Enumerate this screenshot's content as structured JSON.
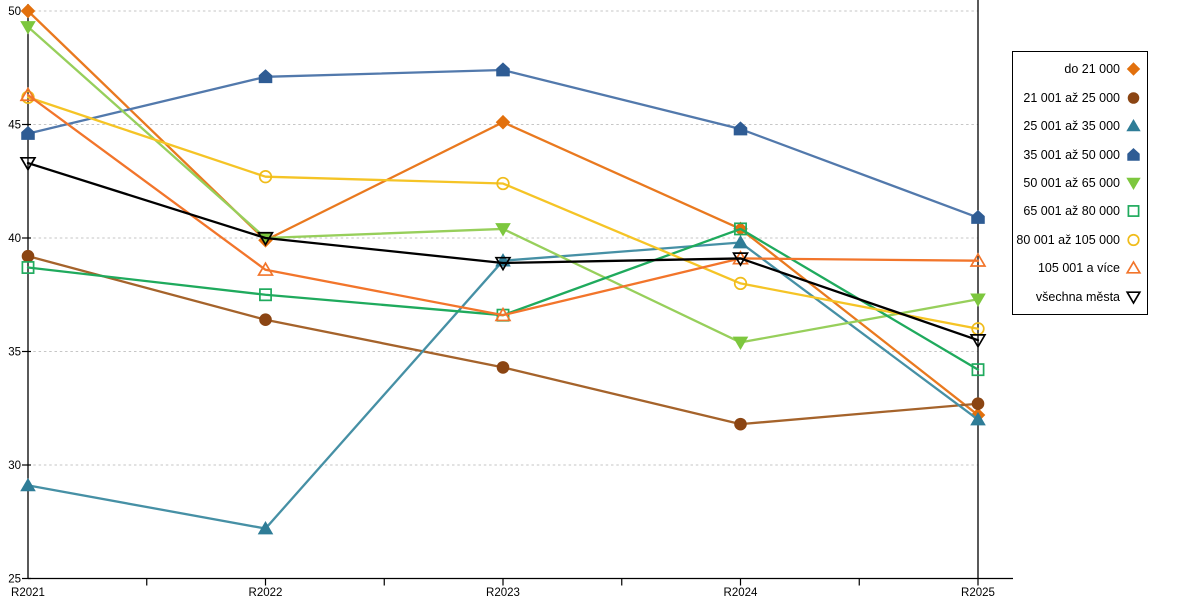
{
  "chart_data": {
    "type": "line",
    "title": "",
    "xlabel": "",
    "ylabel": "",
    "x": [
      "R2021",
      "R2022",
      "R2023",
      "R2024",
      "R2025"
    ],
    "ylim": [
      25,
      50
    ],
    "yticks": [
      25,
      30,
      35,
      40,
      45,
      50
    ],
    "grid": "horizontal-dashed",
    "legend_position": "right",
    "series": [
      {
        "name": "do 21 000",
        "marker": "diamond",
        "fill": "solid",
        "color": "#E9791F",
        "marker_color": "#E2700D",
        "values": [
          50.0,
          39.9,
          45.1,
          40.4,
          32.2
        ]
      },
      {
        "name": "21 001 až 25 000",
        "marker": "circle",
        "fill": "solid",
        "color": "#A5632B",
        "marker_color": "#8B4513",
        "values": [
          39.2,
          36.4,
          34.3,
          31.8,
          32.7
        ]
      },
      {
        "name": "25 001 až 35 000",
        "marker": "triangle-up",
        "fill": "solid",
        "color": "#4690A5",
        "marker_color": "#2F7D97",
        "values": [
          29.1,
          27.2,
          39.0,
          39.8,
          32.0
        ]
      },
      {
        "name": "35 001 až 50 000",
        "marker": "pentagon",
        "fill": "solid",
        "color": "#5279AC",
        "marker_color": "#2F5C94",
        "values": [
          44.6,
          47.1,
          47.4,
          44.8,
          40.9
        ]
      },
      {
        "name": "50 001 až 65 000",
        "marker": "triangle-down",
        "fill": "solid",
        "color": "#97CF5B",
        "marker_color": "#7DC73E",
        "values": [
          49.3,
          40.0,
          40.4,
          35.4,
          37.3
        ]
      },
      {
        "name": "65 001 až 80 000",
        "marker": "square",
        "fill": "open",
        "color": "#1FAA5D",
        "marker_color": "#1FAA5D",
        "values": [
          38.7,
          37.5,
          36.6,
          40.4,
          34.2
        ]
      },
      {
        "name": "80 001 až 105 000",
        "marker": "circle",
        "fill": "open",
        "color": "#F5C426",
        "marker_color": "#F0BC1A",
        "values": [
          46.2,
          42.7,
          42.4,
          38.0,
          36.0
        ]
      },
      {
        "name": "105 001 a více",
        "marker": "triangle-up",
        "fill": "open",
        "color": "#F2752B",
        "marker_color": "#F2752B",
        "values": [
          46.3,
          38.6,
          36.6,
          39.1,
          39.0
        ]
      },
      {
        "name": "všechna města",
        "marker": "triangle-down",
        "fill": "open",
        "color": "#000000",
        "marker_color": "#000000",
        "values": [
          43.3,
          40.0,
          38.9,
          39.1,
          35.5
        ]
      }
    ]
  },
  "axes": {
    "y_tick_labels": [
      "50",
      "45",
      "40",
      "35",
      "30",
      "25"
    ],
    "x_tick_labels": [
      "R2021",
      "R2022",
      "R2023",
      "R2024",
      "R2025"
    ]
  },
  "colors": {
    "grid": "#C6C6C6",
    "axis": "#000000",
    "background": "#FFFFFF"
  }
}
